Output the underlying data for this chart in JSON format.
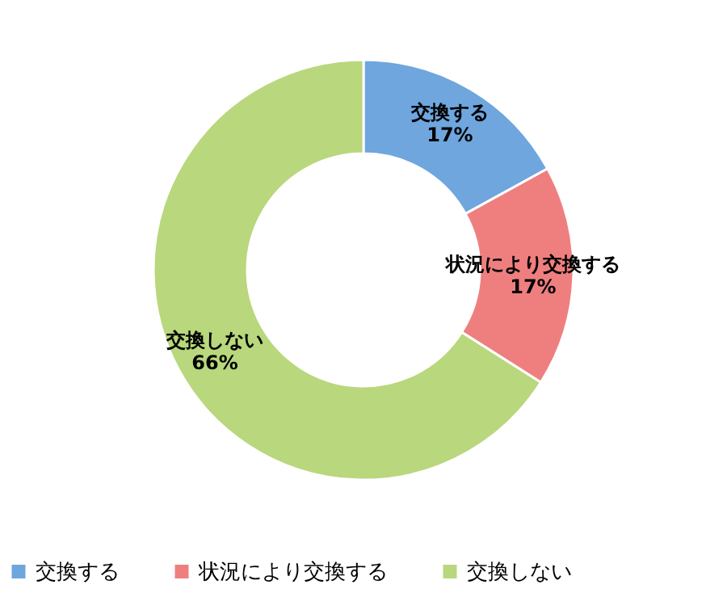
{
  "chart_data": {
    "type": "donut",
    "categories": [
      "交換する",
      "状況により交換する",
      "交換しない"
    ],
    "values": [
      17,
      17,
      66
    ],
    "value_labels": [
      "17%",
      "17%",
      "66%"
    ],
    "colors": [
      "#6fa6de",
      "#ef7f7f",
      "#b9d77c"
    ],
    "legend": "bottom"
  }
}
